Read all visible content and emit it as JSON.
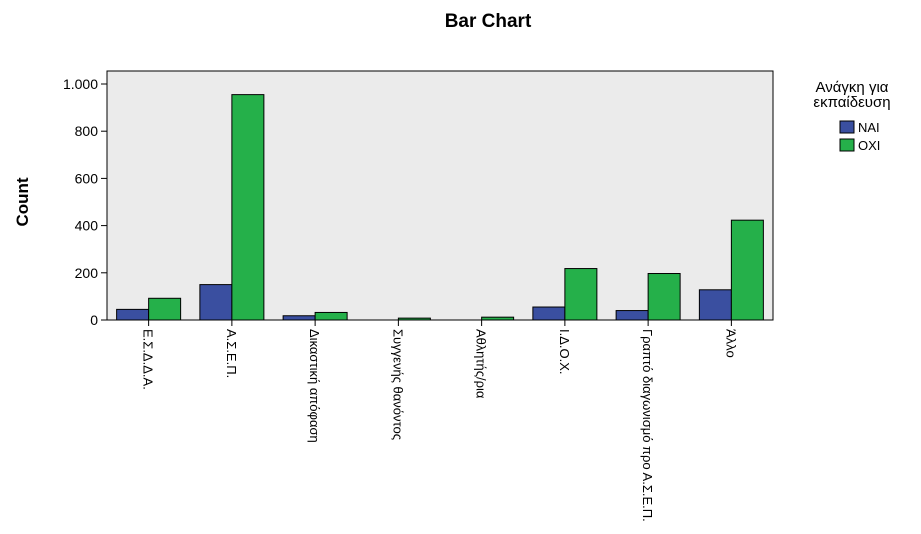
{
  "chart_data": {
    "type": "bar",
    "title": "Bar Chart",
    "ylabel": "Count",
    "xlabel": "",
    "ylim": [
      0,
      1000
    ],
    "yticks": [
      {
        "value": 0,
        "label": "0"
      },
      {
        "value": 200,
        "label": "200"
      },
      {
        "value": 400,
        "label": "400"
      },
      {
        "value": 600,
        "label": "600"
      },
      {
        "value": 800,
        "label": "800"
      },
      {
        "value": 1000,
        "label": "1.000"
      }
    ],
    "categories": [
      "Ε.Σ.Δ.Δ.Α.",
      "Α.Σ.Ε.Π.",
      "Δικαστική απόφαση",
      "Συγγενής θανόντος",
      "Αθλητής/ρια",
      "Ι.Δ.Ο.Χ.",
      "Γραπτό διαγωνισμό προ Α.Σ.Ε.Π.",
      "Άλλο"
    ],
    "series": [
      {
        "name": "ΝΑΙ",
        "color": "#3a4fa0",
        "values": [
          45,
          150,
          18,
          0,
          0,
          55,
          40,
          128
        ]
      },
      {
        "name": "ΟΧΙ",
        "color": "#25b04a",
        "values": [
          92,
          955,
          32,
          8,
          12,
          218,
          197,
          423
        ]
      }
    ],
    "legend": {
      "title": "Ανάγκη για εκπαίδευση",
      "position": "right"
    },
    "grid": false,
    "plot_background": "#ebebeb"
  }
}
